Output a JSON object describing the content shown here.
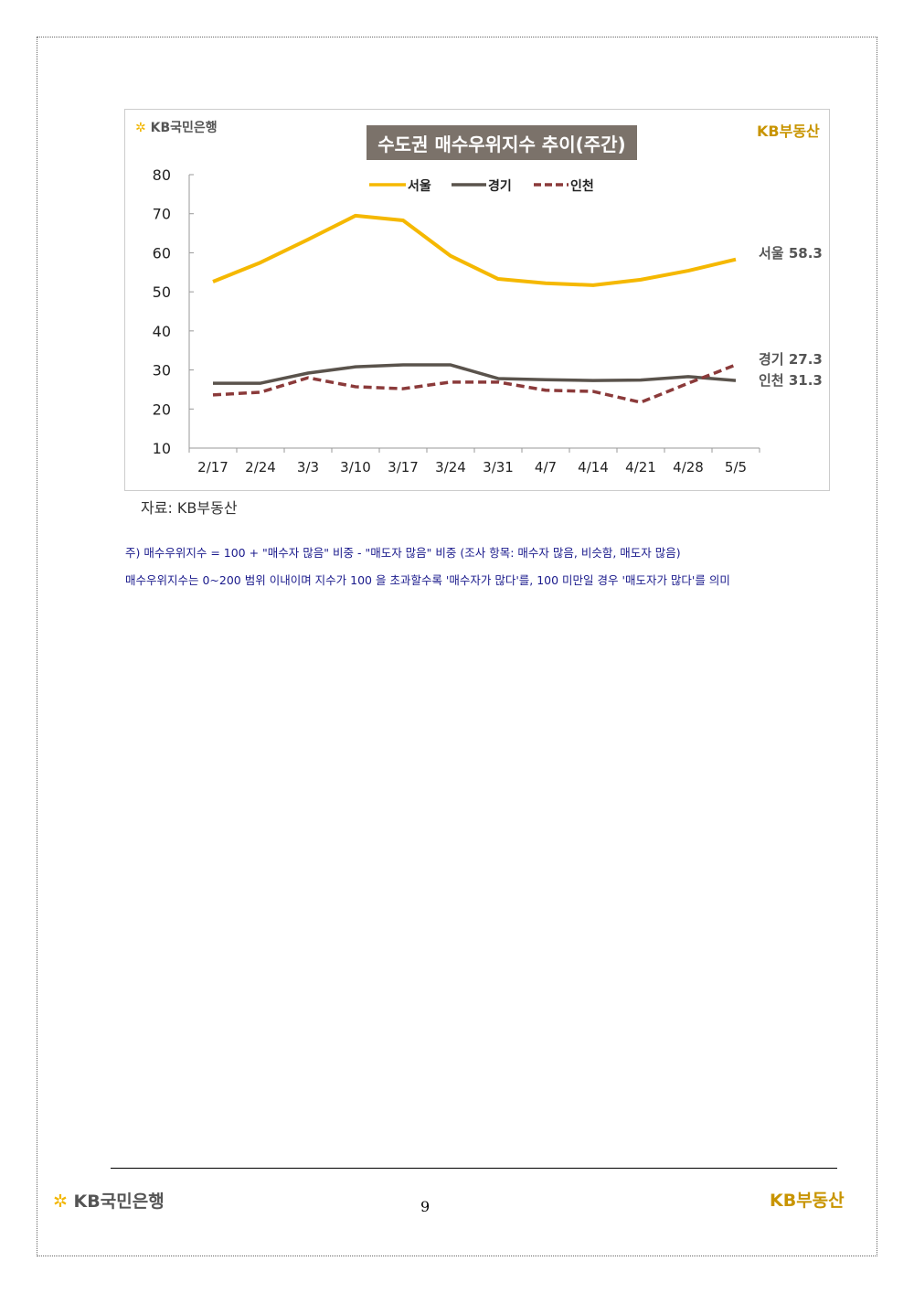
{
  "header": {
    "bank_logo": "KB국민은행",
    "brand_logo": "KB부동산"
  },
  "chart_data": {
    "type": "line",
    "title": "수도권 매수우위지수 추이(주간)",
    "categories": [
      "2/17",
      "2/24",
      "3/3",
      "3/10",
      "3/17",
      "3/24",
      "3/31",
      "4/7",
      "4/14",
      "4/21",
      "4/28",
      "5/5"
    ],
    "ylim": [
      10,
      80
    ],
    "yticks": [
      10,
      20,
      30,
      40,
      50,
      60,
      70,
      80
    ],
    "grid": false,
    "legend": "top-center",
    "series": [
      {
        "name": "서울",
        "color": "#f5b800",
        "dash": false,
        "values": [
          52.6,
          57.5,
          63.4,
          69.5,
          68.3,
          59.2,
          53.3,
          52.2,
          51.7,
          53.1,
          55.4,
          58.3
        ],
        "end_label": "서울 58.3"
      },
      {
        "name": "경기",
        "color": "#5a534c",
        "dash": false,
        "values": [
          26.6,
          26.6,
          29.2,
          30.8,
          31.3,
          31.3,
          27.8,
          27.5,
          27.3,
          27.4,
          28.3,
          27.3
        ],
        "end_label": "경기 27.3"
      },
      {
        "name": "인천",
        "color": "#8b3a3a",
        "dash": true,
        "values": [
          23.6,
          24.3,
          28.0,
          25.7,
          25.2,
          26.9,
          26.9,
          24.8,
          24.5,
          21.7,
          26.6,
          31.3
        ],
        "end_label": "인천 31.3"
      }
    ]
  },
  "source": "자료: KB부동산",
  "notes": [
    "주) 매수우위지수 = 100 + \"매수자 많음\" 비중 - \"매도자 많음\" 비중   (조사 항목: 매수자 많음, 비슷함, 매도자 많음)",
    "매수우위지수는 0~200 범위 이내이며 지수가 100 을 초과할수록 '매수자가 많다'를, 100 미만일 경우 '매도자가 많다'를 의미"
  ],
  "footer": {
    "bank_logo": "KB국민은행",
    "brand_logo": "KB부동산",
    "page_number": "9"
  }
}
